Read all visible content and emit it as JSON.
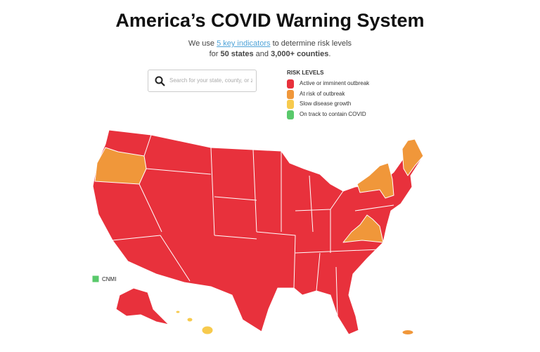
{
  "header": {
    "title": "America’s COVID Warning System",
    "intro": {
      "before": "We use ",
      "link": "5 key indicators",
      "after": " to determine risk levels",
      "line2_before": "for ",
      "bold1": "50 states",
      "mid": " and ",
      "bold2": "3,000+ counties",
      "end": "."
    }
  },
  "search": {
    "placeholder": "Search for your state, county, or zip"
  },
  "legend": {
    "title": "RISK LEVELS",
    "items": [
      {
        "label": "Active or imminent outbreak",
        "color": "#e8313c"
      },
      {
        "label": "At risk of outbreak",
        "color": "#f0973a"
      },
      {
        "label": "Slow disease growth",
        "color": "#f7ca4d"
      },
      {
        "label": "On track to contain COVID",
        "color": "#59c96b"
      }
    ]
  },
  "map": {
    "territory_label": "CNMI"
  }
}
